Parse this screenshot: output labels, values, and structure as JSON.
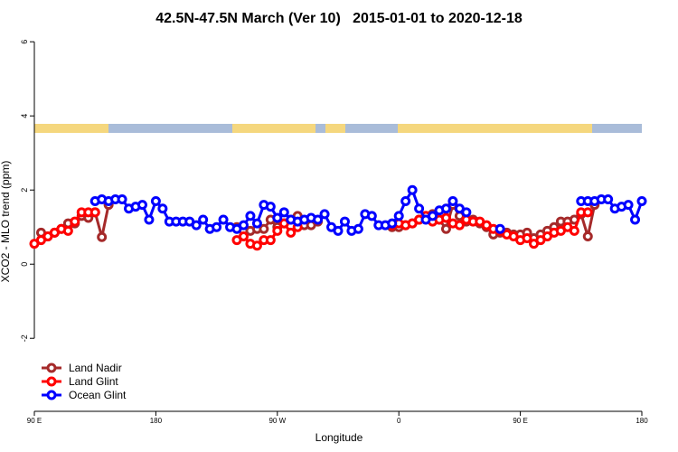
{
  "chart_data": {
    "type": "line",
    "title": "42.5N-47.5N March (Ver 10)   2015-01-01 to 2020-12-18",
    "x_label": "Longitude",
    "y_label": "XCO2 - MLO trend (ppm)",
    "x": [
      90,
      95,
      100,
      105,
      110,
      115,
      120,
      125,
      130,
      135,
      140,
      145,
      150,
      155,
      160,
      165,
      170,
      175,
      180,
      185,
      190,
      195,
      200,
      205,
      210,
      215,
      220,
      225,
      230,
      235,
      240,
      245,
      250,
      255,
      260,
      265,
      270,
      275,
      280,
      285,
      290,
      295,
      300,
      305,
      310,
      315,
      320,
      325,
      330,
      335,
      340,
      345,
      350,
      355,
      360,
      365,
      370,
      375,
      380,
      385,
      390,
      395,
      400,
      405,
      410,
      415,
      420,
      425,
      430,
      435,
      440,
      445,
      450,
      455,
      460,
      465,
      470,
      475,
      480,
      485,
      490,
      495,
      500,
      505,
      510,
      515,
      520,
      525,
      530,
      535,
      540
    ],
    "xlim": [
      90,
      540
    ],
    "xticks": [
      {
        "value": 90,
        "label": "90 E"
      },
      180,
      {
        "value": 270,
        "label": "90 W"
      },
      {
        "value": 360,
        "label": "0"
      },
      {
        "value": 450,
        "label": "90 E"
      },
      {
        "value": 540,
        "label": "180"
      }
    ],
    "ylim": [
      -3.97,
      6.2
    ],
    "yticks": [
      -2,
      0,
      2,
      4,
      6
    ],
    "legend": "bottom-left",
    "series": [
      {
        "name": "Land Nadir",
        "color": "#a52a2a",
        "values": [
          null,
          0.85,
          0.75,
          0.85,
          0.95,
          1.1,
          1.1,
          1.3,
          1.25,
          1.4,
          0.73,
          1.6,
          null,
          null,
          null,
          null,
          null,
          null,
          null,
          null,
          null,
          null,
          null,
          null,
          null,
          null,
          null,
          null,
          null,
          null,
          1.0,
          0.9,
          0.9,
          0.95,
          0.95,
          1.2,
          1.0,
          1.1,
          1.2,
          1.3,
          1.05,
          1.05,
          1.15,
          null,
          null,
          null,
          null,
          null,
          null,
          null,
          null,
          null,
          null,
          1.0,
          1.0,
          1.05,
          1.1,
          1.2,
          1.3,
          1.35,
          1.2,
          0.95,
          1.6,
          1.3,
          1.15,
          1.2,
          1.1,
          1.0,
          0.8,
          0.85,
          0.85,
          0.8,
          0.8,
          0.85,
          0.7,
          0.8,
          0.9,
          1.0,
          1.15,
          1.15,
          1.2,
          1.35,
          0.75,
          1.6,
          null,
          null,
          null,
          null,
          null,
          null,
          null
        ]
      },
      {
        "name": "Land Glint",
        "color": "#ff0000",
        "values": [
          0.55,
          0.65,
          0.75,
          0.85,
          0.95,
          0.9,
          1.15,
          1.4,
          1.4,
          1.4,
          null,
          null,
          null,
          null,
          null,
          null,
          null,
          null,
          null,
          null,
          null,
          null,
          null,
          null,
          null,
          null,
          null,
          null,
          null,
          null,
          0.65,
          0.75,
          0.55,
          0.5,
          0.65,
          0.65,
          0.9,
          1.1,
          0.85,
          1.0,
          null,
          null,
          null,
          null,
          null,
          null,
          null,
          null,
          null,
          null,
          null,
          null,
          null,
          1.05,
          1.1,
          1.05,
          1.1,
          1.2,
          1.3,
          1.15,
          1.2,
          1.25,
          1.1,
          1.05,
          1.2,
          1.15,
          1.15,
          1.05,
          0.95,
          0.9,
          0.8,
          0.75,
          0.65,
          0.7,
          0.55,
          0.65,
          0.75,
          0.85,
          0.9,
          1.0,
          0.9,
          1.4,
          1.4,
          null,
          null,
          null,
          null,
          null,
          null,
          null,
          null
        ]
      },
      {
        "name": "Ocean Glint",
        "color": "#0000ff",
        "values": [
          null,
          null,
          null,
          null,
          null,
          null,
          null,
          null,
          null,
          1.7,
          1.75,
          1.7,
          1.75,
          1.75,
          1.5,
          1.55,
          1.6,
          1.2,
          1.7,
          1.5,
          1.15,
          1.15,
          1.15,
          1.15,
          1.05,
          1.2,
          0.95,
          1.0,
          1.2,
          1.0,
          0.95,
          1.05,
          1.3,
          1.1,
          1.6,
          1.55,
          1.25,
          1.4,
          1.2,
          1.15,
          1.2,
          1.25,
          1.2,
          1.35,
          1.0,
          0.9,
          1.15,
          0.9,
          0.95,
          1.35,
          1.3,
          1.05,
          1.05,
          1.1,
          1.3,
          1.7,
          2.0,
          1.5,
          1.2,
          1.3,
          1.45,
          1.5,
          1.7,
          1.5,
          1.4,
          null,
          null,
          null,
          null,
          0.95,
          null,
          null,
          null,
          null,
          null,
          null,
          null,
          null,
          null,
          null,
          null,
          1.7,
          1.7,
          1.7,
          1.75,
          1.75,
          1.5,
          1.55,
          1.6,
          1.2,
          1.7
        ]
      }
    ]
  }
}
